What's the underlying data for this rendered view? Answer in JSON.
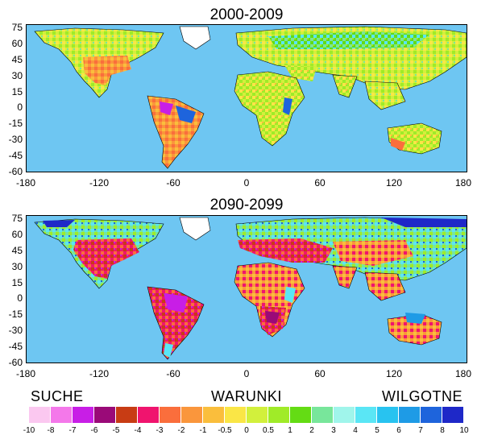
{
  "panels": [
    {
      "title": "2000-2009",
      "y_ticks": [
        "75",
        "60",
        "45",
        "30",
        "15",
        "0",
        "-15",
        "-30",
        "-45",
        "-60"
      ],
      "x_ticks": [
        "-180",
        "-120",
        "-60",
        "0",
        "60",
        "120",
        "180"
      ]
    },
    {
      "title": "2090-2099",
      "y_ticks": [
        "75",
        "60",
        "45",
        "30",
        "15",
        "0",
        "-15",
        "-30",
        "-45",
        "-60"
      ],
      "x_ticks": [
        "-180",
        "-120",
        "-60",
        "0",
        "60",
        "120",
        "180"
      ]
    }
  ],
  "scale": {
    "left_label": "SUCHE",
    "center_label": "WARUNKI",
    "right_label": "WILGOTNE",
    "tick_labels": [
      "-10",
      "-8",
      "-7",
      "-6",
      "-5",
      "-4",
      "-3",
      "-2",
      "-1",
      "-0.5",
      "0",
      "0.5",
      "1",
      "2",
      "3",
      "4",
      "5",
      "6",
      "7",
      "8",
      "10"
    ],
    "colors": [
      "#fbc8f0",
      "#f478ea",
      "#c81ee6",
      "#9a0a78",
      "#c83c14",
      "#f0146e",
      "#fa6e3c",
      "#fa963c",
      "#fabe3c",
      "#fae646",
      "#d2f03c",
      "#a0eb28",
      "#64dc14",
      "#78e69b",
      "#a0f5eb",
      "#5ae6f5",
      "#28c3f0",
      "#1e9be6",
      "#1e64dc",
      "#1e28c8"
    ]
  },
  "map_colors": {
    "ocean": "#6ec6f2",
    "land_outline": "#000000"
  }
}
